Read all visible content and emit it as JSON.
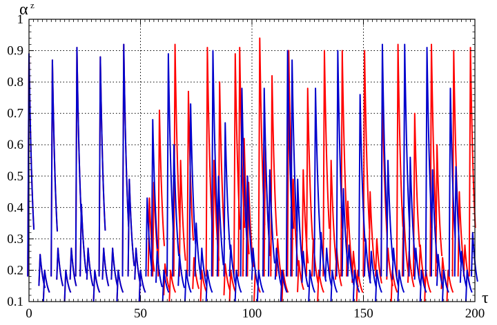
{
  "chart_data": {
    "type": "line",
    "title": "",
    "xlabel": "τ",
    "ylabel": "α",
    "ylabel_superscript": "z",
    "xlim": [
      0,
      200
    ],
    "ylim": [
      0.1,
      1.0
    ],
    "x_ticks": [
      0,
      50,
      100,
      150,
      200
    ],
    "x_tick_labels": [
      "0",
      "50",
      "100",
      "150",
      "200"
    ],
    "y_ticks": [
      0.1,
      0.2,
      0.3,
      0.4,
      0.5,
      0.6,
      0.7,
      0.8,
      0.9,
      1.0
    ],
    "y_tick_labels": [
      "0.1",
      "0.2",
      "0.3",
      "0.4",
      "0.5",
      "0.6",
      "0.7",
      "0.8",
      "0.9",
      "1"
    ],
    "grid": "dotted",
    "legend": "none",
    "series": [
      {
        "color": "#ff0000",
        "spikes": [
          [
            0.0,
            0.89
          ],
          [
            5.0,
            0.25
          ],
          [
            7.0,
            0.2
          ],
          [
            10.5,
            0.87
          ],
          [
            13.0,
            0.27
          ],
          [
            16.5,
            0.2
          ],
          [
            19.0,
            0.27
          ],
          [
            21.5,
            0.91
          ],
          [
            23.5,
            0.41
          ],
          [
            26.5,
            0.27
          ],
          [
            29.5,
            0.2
          ],
          [
            32.0,
            0.88
          ],
          [
            33.5,
            0.27
          ],
          [
            37.5,
            0.27
          ],
          [
            40.0,
            0.2
          ],
          [
            42.5,
            0.92
          ],
          [
            45.0,
            0.49
          ],
          [
            48.0,
            0.27
          ],
          [
            50.0,
            0.2
          ],
          [
            54.0,
            0.43
          ],
          [
            56.0,
            0.48
          ],
          [
            58.5,
            0.71
          ],
          [
            61.0,
            0.22
          ],
          [
            63.5,
            0.2
          ],
          [
            65.5,
            0.92
          ],
          [
            68.0,
            0.55
          ],
          [
            71.5,
            0.77
          ],
          [
            74.0,
            0.24
          ],
          [
            77.5,
            0.2
          ],
          [
            80.0,
            0.91
          ],
          [
            83.0,
            0.55
          ],
          [
            85.5,
            0.8
          ],
          [
            88.0,
            0.22
          ],
          [
            90.5,
            0.2
          ],
          [
            92.5,
            0.89
          ],
          [
            94.5,
            0.91
          ],
          [
            96.5,
            0.62
          ],
          [
            98.5,
            0.48
          ],
          [
            101.5,
            0.2
          ],
          [
            103.5,
            0.94
          ],
          [
            106.0,
            0.6
          ],
          [
            109.0,
            0.82
          ],
          [
            111.5,
            0.3
          ],
          [
            114.0,
            0.2
          ],
          [
            116.5,
            0.9
          ],
          [
            118.5,
            0.49
          ],
          [
            121.0,
            0.23
          ],
          [
            123.0,
            0.52
          ],
          [
            125.0,
            0.78
          ],
          [
            127.5,
            0.3
          ],
          [
            130.0,
            0.2
          ],
          [
            132.5,
            0.9
          ],
          [
            135.5,
            0.55
          ],
          [
            138.0,
            0.27
          ],
          [
            140.5,
            0.9
          ],
          [
            143.0,
            0.42
          ],
          [
            145.5,
            0.26
          ],
          [
            147.5,
            0.2
          ],
          [
            150.5,
            0.9
          ],
          [
            153.0,
            0.45
          ],
          [
            156.0,
            0.3
          ],
          [
            158.5,
            0.78
          ],
          [
            161.0,
            0.27
          ],
          [
            163.0,
            0.2
          ],
          [
            165.5,
            0.92
          ],
          [
            168.0,
            0.4
          ],
          [
            170.5,
            0.26
          ],
          [
            173.0,
            0.7
          ],
          [
            175.5,
            0.28
          ],
          [
            178.0,
            0.2
          ],
          [
            180.5,
            0.92
          ],
          [
            183.0,
            0.6
          ],
          [
            185.5,
            0.24
          ],
          [
            188.0,
            0.2
          ],
          [
            190.5,
            0.9
          ],
          [
            193.0,
            0.45
          ],
          [
            195.5,
            0.28
          ],
          [
            198.0,
            0.91
          ]
        ]
      },
      {
        "color": "#0000cc",
        "spikes": [
          [
            0.0,
            0.89
          ],
          [
            5.0,
            0.25
          ],
          [
            7.0,
            0.2
          ],
          [
            10.5,
            0.87
          ],
          [
            13.0,
            0.27
          ],
          [
            16.5,
            0.2
          ],
          [
            19.0,
            0.27
          ],
          [
            21.5,
            0.91
          ],
          [
            23.5,
            0.41
          ],
          [
            26.5,
            0.27
          ],
          [
            29.5,
            0.2
          ],
          [
            32.0,
            0.88
          ],
          [
            33.5,
            0.27
          ],
          [
            37.5,
            0.27
          ],
          [
            40.0,
            0.2
          ],
          [
            42.5,
            0.92
          ],
          [
            45.0,
            0.49
          ],
          [
            48.0,
            0.27
          ],
          [
            50.0,
            0.2
          ],
          [
            53.0,
            0.43
          ],
          [
            55.5,
            0.68
          ],
          [
            57.5,
            0.26
          ],
          [
            60.5,
            0.2
          ],
          [
            62.5,
            0.89
          ],
          [
            65.0,
            0.6
          ],
          [
            67.5,
            0.25
          ],
          [
            70.5,
            0.2
          ],
          [
            72.5,
            0.73
          ],
          [
            75.0,
            0.35
          ],
          [
            77.5,
            0.27
          ],
          [
            80.0,
            0.2
          ],
          [
            82.5,
            0.9
          ],
          [
            85.0,
            0.5
          ],
          [
            88.0,
            0.67
          ],
          [
            90.5,
            0.28
          ],
          [
            93.0,
            0.2
          ],
          [
            95.5,
            0.78
          ],
          [
            98.0,
            0.5
          ],
          [
            100.5,
            0.27
          ],
          [
            103.0,
            0.2
          ],
          [
            105.5,
            0.78
          ],
          [
            108.0,
            0.52
          ],
          [
            111.0,
            0.27
          ],
          [
            113.5,
            0.2
          ],
          [
            116.0,
            0.9
          ],
          [
            118.0,
            0.87
          ],
          [
            120.5,
            0.49
          ],
          [
            123.0,
            0.26
          ],
          [
            126.0,
            0.2
          ],
          [
            128.5,
            0.78
          ],
          [
            131.0,
            0.32
          ],
          [
            133.5,
            0.27
          ],
          [
            136.0,
            0.2
          ],
          [
            138.5,
            0.9
          ],
          [
            141.0,
            0.46
          ],
          [
            143.5,
            0.28
          ],
          [
            146.0,
            0.2
          ],
          [
            148.5,
            0.76
          ],
          [
            151.0,
            0.3
          ],
          [
            153.5,
            0.26
          ],
          [
            156.0,
            0.2
          ],
          [
            158.5,
            0.92
          ],
          [
            161.0,
            0.55
          ],
          [
            163.5,
            0.27
          ],
          [
            166.0,
            0.2
          ],
          [
            168.5,
            0.92
          ],
          [
            171.0,
            0.56
          ],
          [
            173.5,
            0.27
          ],
          [
            176.0,
            0.2
          ],
          [
            178.5,
            0.91
          ],
          [
            181.0,
            0.52
          ],
          [
            183.5,
            0.25
          ],
          [
            186.0,
            0.2
          ],
          [
            189.0,
            0.78
          ],
          [
            191.5,
            0.53
          ],
          [
            194.0,
            0.26
          ],
          [
            196.5,
            0.2
          ],
          [
            199.0,
            0.32
          ]
        ]
      }
    ]
  }
}
